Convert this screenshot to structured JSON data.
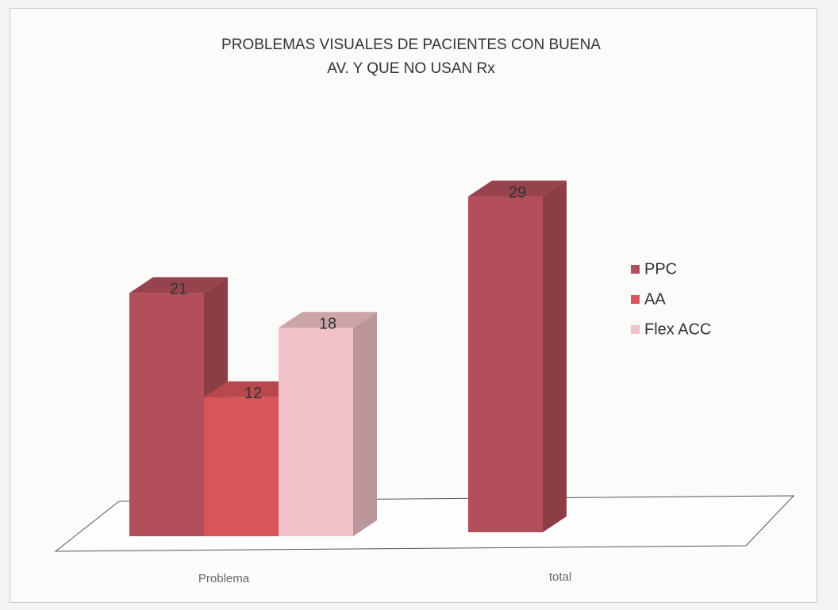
{
  "chart_data": {
    "type": "bar3d",
    "title": "PROBLEMAS VISUALES DE PACIENTES CON BUENA AV. Y QUE NO USAN Rx",
    "categories": [
      "Problema",
      "total"
    ],
    "series": [
      {
        "name": "PPC",
        "color": "#b24f5a",
        "values": [
          21,
          29
        ]
      },
      {
        "name": "AA",
        "color": "#d9555a",
        "values": [
          12,
          null
        ]
      },
      {
        "name": "Flex ACC",
        "color": "#f0c2c7",
        "values": [
          18,
          null
        ]
      }
    ],
    "legend": "right"
  }
}
